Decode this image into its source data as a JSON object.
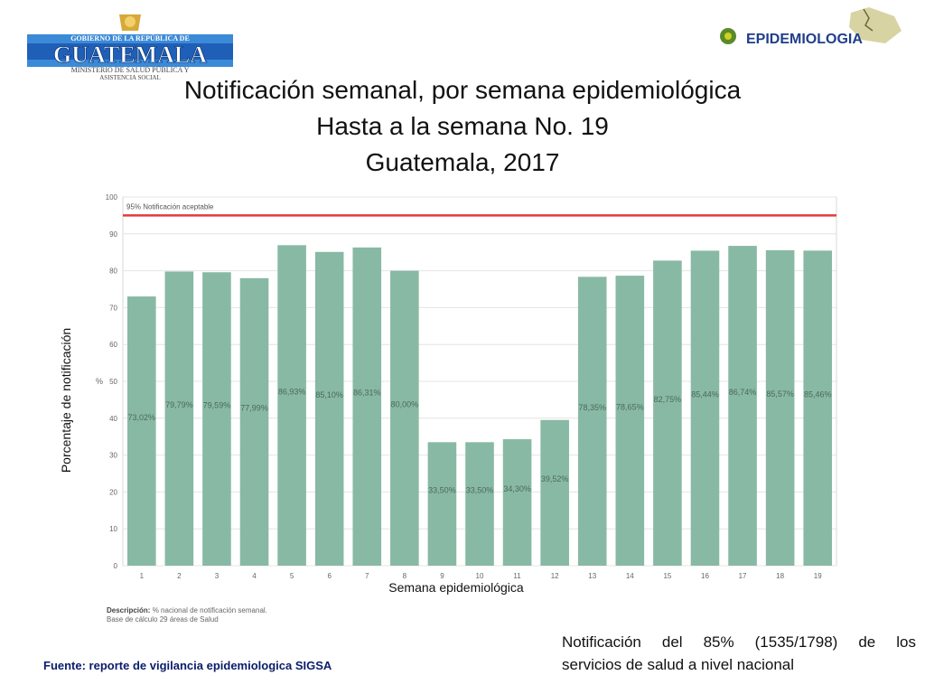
{
  "header": {
    "logo_left_lines": [
      "GOBIERNO DE LA REPÚBLICA DE",
      "GUATEMALA",
      "MINISTERIO DE SALUD PÚBLICA Y",
      "ASISTENCIA SOCIAL"
    ],
    "logo_right_text": "EPIDEMIOLOGIA",
    "title_lines": [
      "Notificación semanal, por semana epidemiológica",
      "Hasta a la semana No. 19",
      "Guatemala, 2017"
    ]
  },
  "axis_titles": {
    "ylabel": "Porcentaje de notificación",
    "xlabel": "Semana epidemiológica"
  },
  "chart_data": {
    "type": "bar",
    "categories": [
      "1",
      "2",
      "3",
      "4",
      "5",
      "6",
      "7",
      "8",
      "9",
      "10",
      "11",
      "12",
      "13",
      "14",
      "15",
      "16",
      "17",
      "18",
      "19"
    ],
    "values": [
      73.02,
      79.79,
      79.59,
      77.99,
      86.93,
      85.1,
      86.31,
      80.0,
      33.5,
      33.5,
      34.3,
      39.52,
      78.35,
      78.65,
      82.75,
      85.44,
      86.74,
      85.57,
      85.46
    ],
    "data_labels": [
      "73,02%",
      "79,79%",
      "79,59%",
      "77,99%",
      "86,93%",
      "85,10%",
      "86,31%",
      "80,00%",
      "33,50%",
      "33,50%",
      "34,30%",
      "39,52%",
      "78,35%",
      "78,65%",
      "82,75%",
      "85,44%",
      "86,74%",
      "85,57%",
      "85,46%"
    ],
    "ylabel_inner": "%",
    "ylim": [
      0,
      100
    ],
    "yticks": [
      "0",
      "10",
      "20",
      "30",
      "40",
      "50",
      "60",
      "70",
      "80",
      "90",
      "100"
    ],
    "reference_line": {
      "value": 95,
      "label": "95% Notificación aceptable",
      "color": "#e03c3c"
    },
    "bar_color": "#88b9a4",
    "grid": true
  },
  "description": {
    "label": "Descripción:",
    "text": "% nacional de notificación semanal.",
    "base": "Base de cálculo 29 áreas de Salud"
  },
  "note_lines": [
    "Notificación del 85% (1535/1798) de los",
    "servicios de salud a nivel nacional"
  ],
  "source": "Fuente: reporte de vigilancia epidemiologica SIGSA"
}
